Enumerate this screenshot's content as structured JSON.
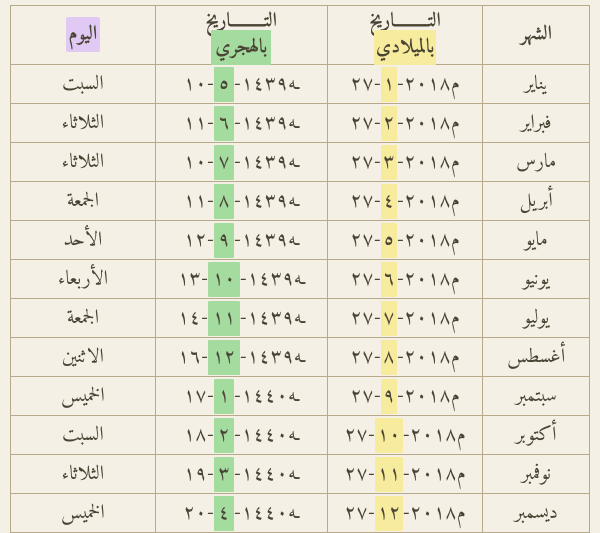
{
  "headers": {
    "month": "الشهر",
    "gregorian_a": "التـــــــــاريخ",
    "gregorian_b": "بالميلادي",
    "hijri_a": "التـــــــــاريخ",
    "hijri_b": "بالهجري",
    "day": "اليوم"
  },
  "rows": [
    {
      "month": "يناير",
      "g_pre": "٢٧-",
      "g_hl": "١",
      "g_post": "-٢٠١٨م",
      "h_pre": "١٠-",
      "h_hl": "٥",
      "h_post": "-١٤٣٩هـ",
      "day": "السبت"
    },
    {
      "month": "فبراير",
      "g_pre": "٢٧-",
      "g_hl": "٢",
      "g_post": "-٢٠١٨م",
      "h_pre": "١١-",
      "h_hl": "٦",
      "h_post": "-١٤٣٩هـ",
      "day": "الثلاثاء"
    },
    {
      "month": "مارس",
      "g_pre": "٢٧-",
      "g_hl": "٣",
      "g_post": "-٢٠١٨م",
      "h_pre": "١٠-",
      "h_hl": "٧",
      "h_post": "-١٤٣٩هـ",
      "day": "الثلاثاء"
    },
    {
      "month": "أبريل",
      "g_pre": "٢٧-",
      "g_hl": "٤",
      "g_post": "-٢٠١٨م",
      "h_pre": "١١-",
      "h_hl": "٨",
      "h_post": "-١٤٣٩هـ",
      "day": "الجمعة"
    },
    {
      "month": "مايو",
      "g_pre": "٢٧-",
      "g_hl": "٥",
      "g_post": "-٢٠١٨م",
      "h_pre": "١٢-",
      "h_hl": "٩",
      "h_post": "-١٤٣٩هـ",
      "day": "الأحد"
    },
    {
      "month": "يونيو",
      "g_pre": "٢٧-",
      "g_hl": "٦",
      "g_post": "-٢٠١٨م",
      "h_pre": "١٣-",
      "h_hl": "١٠",
      "h_post": "-١٤٣٩هـ",
      "day": "الأربعاء"
    },
    {
      "month": "يوليو",
      "g_pre": "٢٧-",
      "g_hl": "٧",
      "g_post": "-٢٠١٨م",
      "h_pre": "١٤-",
      "h_hl": "١١",
      "h_post": "-١٤٣٩هـ",
      "day": "الجمعة"
    },
    {
      "month": "أغسطس",
      "g_pre": "٢٧-",
      "g_hl": "٨",
      "g_post": "-٢٠١٨م",
      "h_pre": "١٦-",
      "h_hl": "١٢",
      "h_post": "-١٤٣٩هـ",
      "day": "الاثنين"
    },
    {
      "month": "سبتمبر",
      "g_pre": "٢٧-",
      "g_hl": "٩",
      "g_post": "-٢٠١٨م",
      "h_pre": "١٧-",
      "h_hl": "١",
      "h_post": "-١٤٤٠هـ",
      "day": "الخميس"
    },
    {
      "month": "أكتوبر",
      "g_pre": "٢٧-",
      "g_hl": "١٠",
      "g_post": "-٢٠١٨م",
      "h_pre": "١٨-",
      "h_hl": "٢",
      "h_post": "-١٤٤٠هـ",
      "day": "السبت"
    },
    {
      "month": "نوفمبر",
      "g_pre": "٢٧-",
      "g_hl": "١١",
      "g_post": "-٢٠١٨م",
      "h_pre": "١٩-",
      "h_hl": "٣",
      "h_post": "-١٤٤٠هـ",
      "day": "الثلاثاء"
    },
    {
      "month": "ديسمبر",
      "g_pre": "٢٧-",
      "g_hl": "١٢",
      "g_post": "-٢٠١٨م",
      "h_pre": "٢٠-",
      "h_hl": "٤",
      "h_post": "-١٤٤٠هـ",
      "day": "الخميس"
    }
  ],
  "style": {
    "background_color": "#f4f0e5",
    "border_color": "#b8a98a",
    "text_color": "#4a4435",
    "highlight_purple": "#e0c9f3",
    "highlight_yellow": "#f7ec9d",
    "highlight_green": "#a4dca0",
    "header_fontsize": 20,
    "cell_fontsize": 20,
    "columns": [
      "الشهر",
      "التاريخ بالميلادي",
      "التاريخ بالهجري",
      "اليوم"
    ]
  }
}
